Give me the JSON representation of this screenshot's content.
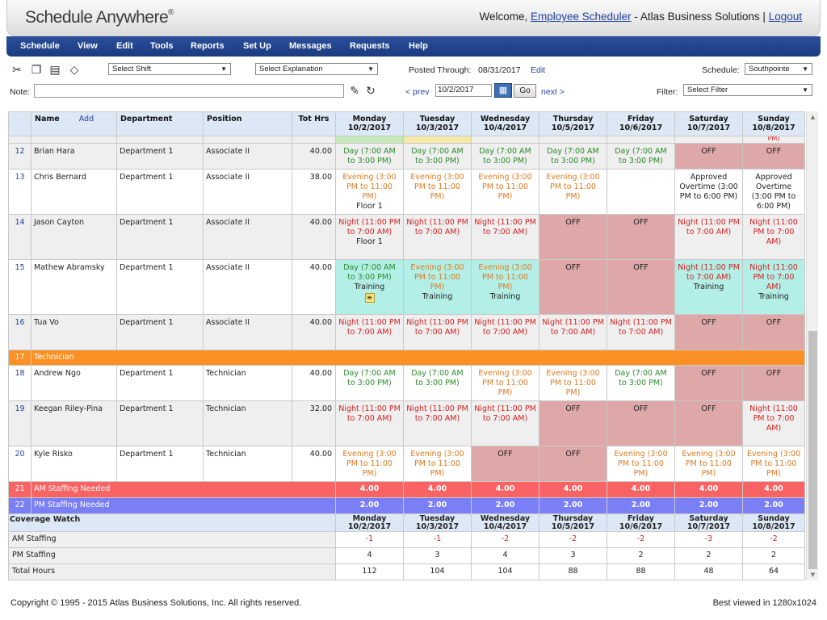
{
  "header": {
    "logo_text": "Schedule Anywhere",
    "logo_mark": "®",
    "welcome_prefix": "Welcome,",
    "user_name": "Employee Scheduler",
    "company": "- Atlas Business Solutions |",
    "logout_label": "Logout"
  },
  "menu": [
    "Schedule",
    "View",
    "Edit",
    "Tools",
    "Reports",
    "Set Up",
    "Messages",
    "Requests",
    "Help"
  ],
  "toolbar": {
    "select_shift": "Select Shift",
    "select_explanation": "Select Explanation",
    "posted_label": "Posted Through:",
    "posted_date": "08/31/2017",
    "edit_label": "Edit",
    "schedule_label": "Schedule:",
    "schedule_value": "Southpointe",
    "note_label": "Note:",
    "prev_label": "< prev",
    "date_value": "10/2/2017",
    "go_label": "Go",
    "next_label": "next >",
    "filter_label": "Filter:",
    "filter_value": "Select Filter"
  },
  "columns": {
    "name": "Name",
    "add": "Add",
    "department": "Department",
    "position": "Position",
    "tot_hrs": "Tot Hrs"
  },
  "days": [
    {
      "day": "Monday",
      "date": "10/2/2017"
    },
    {
      "day": "Tuesday",
      "date": "10/3/2017"
    },
    {
      "day": "Wednesday",
      "date": "10/4/2017"
    },
    {
      "day": "Thursday",
      "date": "10/5/2017"
    },
    {
      "day": "Friday",
      "date": "10/6/2017"
    },
    {
      "day": "Saturday",
      "date": "10/7/2017"
    },
    {
      "day": "Sunday",
      "date": "10/8/2017"
    }
  ],
  "top_strip_sunday": "PM)",
  "rows": [
    {
      "num": "12",
      "name": "Brian Hara",
      "department": "Department 1",
      "position": "Associate II",
      "hrs": "40.00",
      "bg": "gray",
      "cells": [
        {
          "text": "Day (7:00 AM to 3:00 PM)",
          "cls": "day"
        },
        {
          "text": "Day (7:00 AM to 3:00 PM)",
          "cls": "day"
        },
        {
          "text": "Day (7:00 AM to 3:00 PM)",
          "cls": "day"
        },
        {
          "text": "Day (7:00 AM to 3:00 PM)",
          "cls": "day"
        },
        {
          "text": "Day (7:00 AM to 3:00 PM)",
          "cls": "day"
        },
        {
          "text": "OFF",
          "cls": "off-text",
          "bg": "off"
        },
        {
          "text": "OFF",
          "cls": "off-text",
          "bg": "off"
        }
      ]
    },
    {
      "num": "13",
      "name": "Chris Bernard",
      "department": "Department 1",
      "position": "Associate II",
      "hrs": "38.00",
      "bg": "white",
      "cells": [
        {
          "text": "Evening (3:00 PM to 11:00 PM)",
          "cls": "evening",
          "sub": "Floor 1"
        },
        {
          "text": "Evening (3:00 PM to 11:00 PM)",
          "cls": "evening"
        },
        {
          "text": "Evening (3:00 PM to 11:00 PM)",
          "cls": "evening"
        },
        {
          "text": "Evening (3:00 PM to 11:00 PM)",
          "cls": "evening"
        },
        {
          "text": "",
          "cls": ""
        },
        {
          "text": "Approved Overtime (3:00 PM to 6:00 PM)",
          "cls": "approved"
        },
        {
          "text": "Approved Overtime (3:00 PM to 6:00 PM)",
          "cls": "approved"
        }
      ]
    },
    {
      "num": "14",
      "name": "Jason Cayton",
      "department": "Department 1",
      "position": "Associate II",
      "hrs": "40.00",
      "bg": "gray",
      "cells": [
        {
          "text": "Night (11:00 PM to 7:00 AM)",
          "cls": "night",
          "sub": "Floor 1"
        },
        {
          "text": "Night (11:00 PM to 7:00 AM)",
          "cls": "night"
        },
        {
          "text": "Night (11:00 PM to 7:00 AM)",
          "cls": "night"
        },
        {
          "text": "OFF",
          "cls": "off-text",
          "bg": "off"
        },
        {
          "text": "OFF",
          "cls": "off-text",
          "bg": "off"
        },
        {
          "text": "Night (11:00 PM to 7:00 AM)",
          "cls": "night"
        },
        {
          "text": "Night (11:00 PM to 7:00 AM)",
          "cls": "night"
        }
      ]
    },
    {
      "num": "15",
      "name": "Mathew Abramsky",
      "department": "Department 1",
      "position": "Associate II",
      "hrs": "40.00",
      "bg": "white",
      "cells": [
        {
          "text": "Day (7:00 AM to 3:00 PM)",
          "cls": "day",
          "sub": "Training",
          "bg": "teal",
          "note": true
        },
        {
          "text": "Evening (3:00 PM to 11:00 PM)",
          "cls": "evening",
          "sub": "Training",
          "bg": "teal"
        },
        {
          "text": "Evening (3:00 PM to 11:00 PM)",
          "cls": "evening",
          "sub": "Training",
          "bg": "teal"
        },
        {
          "text": "OFF",
          "cls": "off-text",
          "bg": "off"
        },
        {
          "text": "OFF",
          "cls": "off-text",
          "bg": "off"
        },
        {
          "text": "Night (11:00 PM to 7:00 AM)",
          "cls": "night",
          "sub": "Training",
          "bg": "teal"
        },
        {
          "text": "Night (11:00 PM to 7:00 AM)",
          "cls": "night",
          "sub": "Training",
          "bg": "teal"
        }
      ]
    },
    {
      "num": "16",
      "name": "Tua Vo",
      "department": "Department 1",
      "position": "Associate II",
      "hrs": "40.00",
      "bg": "gray",
      "cells": [
        {
          "text": "Night (11:00 PM to 7:00 AM)",
          "cls": "night"
        },
        {
          "text": "Night (11:00 PM to 7:00 AM)",
          "cls": "night"
        },
        {
          "text": "Night (11:00 PM to 7:00 AM)",
          "cls": "night"
        },
        {
          "text": "Night (11:00 PM to 7:00 AM)",
          "cls": "night"
        },
        {
          "text": "Night (11:00 PM to 7:00 AM)",
          "cls": "night"
        },
        {
          "text": "OFF",
          "cls": "off-text",
          "bg": "off"
        },
        {
          "text": "OFF",
          "cls": "off-text",
          "bg": "off"
        }
      ]
    }
  ],
  "group": {
    "num": "17",
    "label": "Technician"
  },
  "rows2": [
    {
      "num": "18",
      "name": "Andrew Ngo",
      "department": "Department 1",
      "position": "Technician",
      "hrs": "40.00",
      "bg": "white",
      "cells": [
        {
          "text": "Day (7:00 AM to 3:00 PM)",
          "cls": "day"
        },
        {
          "text": "Day (7:00 AM to 3:00 PM)",
          "cls": "day"
        },
        {
          "text": "Evening (3:00 PM to 11:00 PM)",
          "cls": "evening"
        },
        {
          "text": "Evening (3:00 PM to 11:00 PM)",
          "cls": "evening"
        },
        {
          "text": "Day (7:00 AM to 3:00 PM)",
          "cls": "day"
        },
        {
          "text": "OFF",
          "cls": "off-text",
          "bg": "off"
        },
        {
          "text": "OFF",
          "cls": "off-text",
          "bg": "off"
        }
      ]
    },
    {
      "num": "19",
      "name": "Keegan Riley-Pina",
      "department": "Department 1",
      "position": "Technician",
      "hrs": "32.00",
      "bg": "gray",
      "cells": [
        {
          "text": "Night (11:00 PM to 7:00 AM)",
          "cls": "night"
        },
        {
          "text": "Night (11:00 PM to 7:00 AM)",
          "cls": "night"
        },
        {
          "text": "Night (11:00 PM to 7:00 AM)",
          "cls": "night"
        },
        {
          "text": "OFF",
          "cls": "off-text",
          "bg": "off"
        },
        {
          "text": "OFF",
          "cls": "off-text",
          "bg": "off"
        },
        {
          "text": "OFF",
          "cls": "off-text",
          "bg": "off"
        },
        {
          "text": "Night (11:00 PM to 7:00 AM)",
          "cls": "night"
        }
      ]
    },
    {
      "num": "20",
      "name": "Kyle Risko",
      "department": "Department 1",
      "position": "Technician",
      "hrs": "40.00",
      "bg": "white",
      "cells": [
        {
          "text": "Evening (3:00 PM to 11:00 PM)",
          "cls": "evening"
        },
        {
          "text": "Evening (3:00 PM to 11:00 PM)",
          "cls": "evening"
        },
        {
          "text": "OFF",
          "cls": "off-text",
          "bg": "off"
        },
        {
          "text": "OFF",
          "cls": "off-text",
          "bg": "off"
        },
        {
          "text": "Evening (3:00 PM to 11:00 PM)",
          "cls": "evening"
        },
        {
          "text": "Evening (3:00 PM to 11:00 PM)",
          "cls": "evening"
        },
        {
          "text": "Evening (3:00 PM to 11:00 PM)",
          "cls": "evening"
        }
      ]
    }
  ],
  "am_needed": {
    "num": "21",
    "label": "AM Staffing Needed",
    "values": [
      "4.00",
      "4.00",
      "4.00",
      "4.00",
      "4.00",
      "4.00",
      "4.00"
    ]
  },
  "pm_needed": {
    "num": "22",
    "label": "PM Staffing Needed",
    "values": [
      "2.00",
      "2.00",
      "2.00",
      "2.00",
      "2.00",
      "2.00",
      "2.00"
    ]
  },
  "coverage": {
    "title": "Coverage Watch",
    "rows": [
      {
        "label": "AM Staffing",
        "values": [
          "-1",
          "-1",
          "-2",
          "-2",
          "-2",
          "-3",
          "-2"
        ],
        "negative": true
      },
      {
        "label": "PM Staffing",
        "values": [
          "4",
          "3",
          "4",
          "3",
          "2",
          "2",
          "2"
        ],
        "negative": false
      },
      {
        "label": "Total Hours",
        "values": [
          "112",
          "104",
          "104",
          "88",
          "88",
          "48",
          "64"
        ],
        "negative": false
      }
    ]
  },
  "footer": {
    "copyright": "Copyright © 1995 - 2015 Atlas Business Solutions, Inc. All rights reserved.",
    "best_viewed": "Best viewed in 1280x1024"
  },
  "colors": {
    "menu_bar": "#1a3b80",
    "off_cell": "#dea7a8",
    "training_cell": "#b3efe6",
    "group_header": "#fb9124",
    "am_needed": "#fa6363",
    "pm_needed": "#7b7ff6"
  },
  "icons": [
    "scissors-icon",
    "copy-icon",
    "paste-icon",
    "eraser-icon",
    "note-edit-icon",
    "refresh-icon",
    "calendar-icon",
    "sticky-note-icon"
  ]
}
